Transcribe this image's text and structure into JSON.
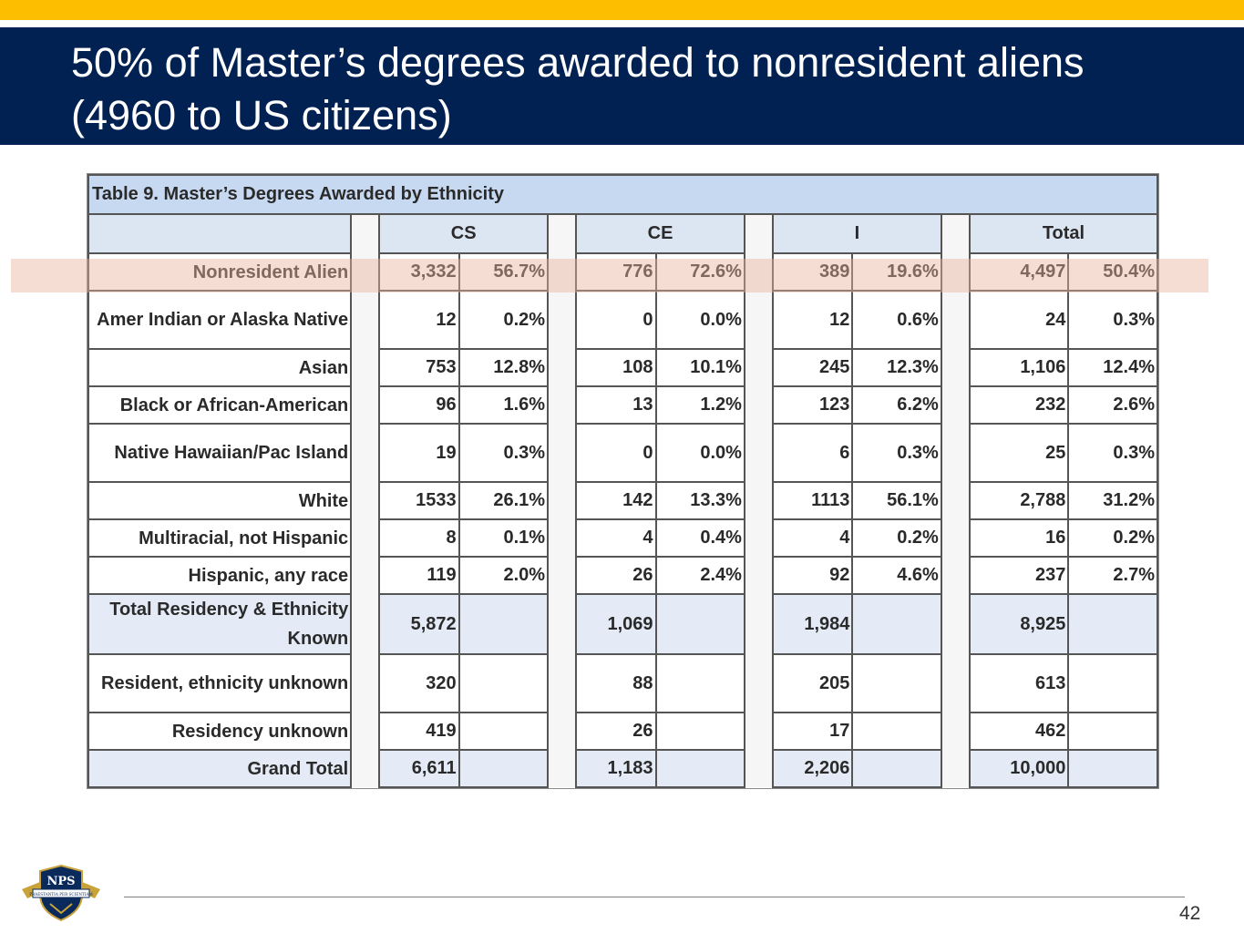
{
  "slide": {
    "title_line1": "50% of Master’s degrees awarded to nonresident aliens",
    "title_line2": "(4960 to US citizens)",
    "page_number": "42",
    "logo_text": "NPS",
    "logo_motto": "PRAESTANTIA PER SCIENTIAM"
  },
  "table": {
    "caption": "Table 9. Master’s Degrees Awarded by Ethnicity",
    "groups": [
      "CS",
      "CE",
      "I",
      "Total"
    ],
    "rows": [
      {
        "label": "Nonresident Alien",
        "cells": [
          "3,332",
          "56.7%",
          "776",
          "72.6%",
          "389",
          "19.6%",
          "4,497",
          "50.4%"
        ]
      },
      {
        "label": "Amer Indian or Alaska Native",
        "cells": [
          "12",
          "0.2%",
          "0",
          "0.0%",
          "12",
          "0.6%",
          "24",
          "0.3%"
        ]
      },
      {
        "label": "Asian",
        "cells": [
          "753",
          "12.8%",
          "108",
          "10.1%",
          "245",
          "12.3%",
          "1,106",
          "12.4%"
        ]
      },
      {
        "label": "Black or African-American",
        "cells": [
          "96",
          "1.6%",
          "13",
          "1.2%",
          "123",
          "6.2%",
          "232",
          "2.6%"
        ]
      },
      {
        "label": "Native Hawaiian/Pac Island",
        "cells": [
          "19",
          "0.3%",
          "0",
          "0.0%",
          "6",
          "0.3%",
          "25",
          "0.3%"
        ]
      },
      {
        "label": "White",
        "cells": [
          "1533",
          "26.1%",
          "142",
          "13.3%",
          "1113",
          "56.1%",
          "2,788",
          "31.2%"
        ]
      },
      {
        "label": "Multiracial, not Hispanic",
        "cells": [
          "8",
          "0.1%",
          "4",
          "0.4%",
          "4",
          "0.2%",
          "16",
          "0.2%"
        ]
      },
      {
        "label": "Hispanic, any race",
        "cells": [
          "119",
          "2.0%",
          "26",
          "2.4%",
          "92",
          "4.6%",
          "237",
          "2.7%"
        ]
      },
      {
        "label": "Total Residency & Ethnicity Known",
        "cells": [
          "5,872",
          "",
          "1,069",
          "",
          "1,984",
          "",
          "8,925",
          ""
        ]
      },
      {
        "label": "Resident, ethnicity unknown",
        "cells": [
          "320",
          "",
          "88",
          "",
          "205",
          "",
          "613",
          ""
        ]
      },
      {
        "label": "Residency unknown",
        "cells": [
          "419",
          "",
          "26",
          "",
          "17",
          "",
          "462",
          ""
        ]
      },
      {
        "label": "Grand Total",
        "cells": [
          "6,611",
          "",
          "1,183",
          "",
          "2,206",
          "",
          "10,000",
          ""
        ]
      }
    ]
  },
  "colors": {
    "gold": "#FDBE00",
    "navy": "#002152",
    "caption_blue": "#C6D9F1",
    "highlight": "#F2D6CC"
  }
}
